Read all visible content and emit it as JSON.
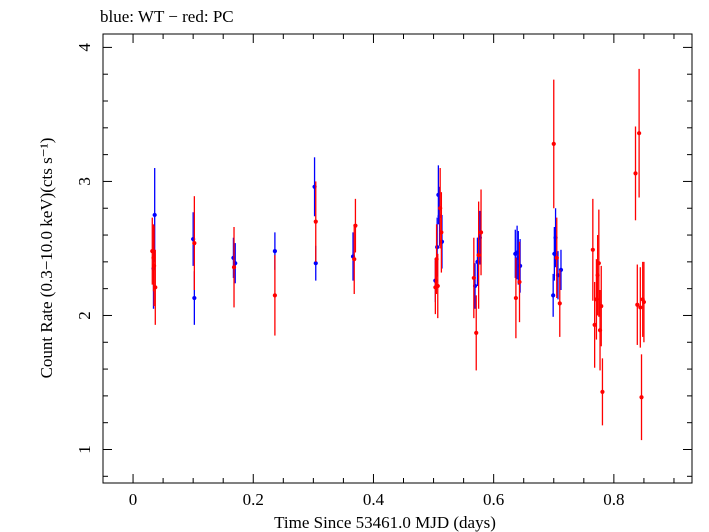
{
  "header": {
    "title": "blue: WT − red: PC"
  },
  "colors": {
    "wt": "#0000ff",
    "pc": "#ff0000",
    "axis": "#000000"
  },
  "chart_data": {
    "type": "scatter",
    "title": "blue: WT − red: PC",
    "xlabel": "Time Since 53461.0 MJD (days)",
    "ylabel": "Count Rate (0.3−10.0 keV)(cts s⁻¹)",
    "xlim": [
      -0.05,
      0.93
    ],
    "ylim": [
      0.75,
      4.1
    ],
    "xticks": [
      0,
      0.2,
      0.4,
      0.6,
      0.8
    ],
    "xtick_labels": [
      "0",
      "0.2",
      "0.4",
      "0.6",
      "0.8"
    ],
    "yticks": [
      1,
      2,
      3,
      4
    ],
    "ytick_labels": [
      "1",
      "2",
      "3",
      "4"
    ],
    "grid": false,
    "series": [
      {
        "name": "WT",
        "color": "#0000ff",
        "points": [
          {
            "x": 0.034,
            "y": 2.35,
            "err": 0.3
          },
          {
            "x": 0.036,
            "y": 2.75,
            "err": 0.35
          },
          {
            "x": 0.1,
            "y": 2.57,
            "err": 0.2
          },
          {
            "x": 0.102,
            "y": 2.13,
            "err": 0.2
          },
          {
            "x": 0.167,
            "y": 2.43,
            "err": 0.15
          },
          {
            "x": 0.17,
            "y": 2.39,
            "err": 0.15
          },
          {
            "x": 0.236,
            "y": 2.48,
            "err": 0.14
          },
          {
            "x": 0.302,
            "y": 2.96,
            "err": 0.22
          },
          {
            "x": 0.304,
            "y": 2.39,
            "err": 0.13
          },
          {
            "x": 0.366,
            "y": 2.44,
            "err": 0.18
          },
          {
            "x": 0.503,
            "y": 2.26,
            "err": 0.16
          },
          {
            "x": 0.506,
            "y": 2.51,
            "err": 0.22
          },
          {
            "x": 0.508,
            "y": 2.9,
            "err": 0.22
          },
          {
            "x": 0.51,
            "y": 2.74,
            "err": 0.22
          },
          {
            "x": 0.514,
            "y": 2.55,
            "err": 0.2
          },
          {
            "x": 0.569,
            "y": 2.22,
            "err": 0.17
          },
          {
            "x": 0.573,
            "y": 2.4,
            "err": 0.18
          },
          {
            "x": 0.577,
            "y": 2.58,
            "err": 0.2
          },
          {
            "x": 0.636,
            "y": 2.46,
            "err": 0.18
          },
          {
            "x": 0.639,
            "y": 2.47,
            "err": 0.2
          },
          {
            "x": 0.641,
            "y": 2.43,
            "err": 0.2
          },
          {
            "x": 0.644,
            "y": 2.37,
            "err": 0.2
          },
          {
            "x": 0.699,
            "y": 2.15,
            "err": 0.16
          },
          {
            "x": 0.701,
            "y": 2.46,
            "err": 0.2
          },
          {
            "x": 0.703,
            "y": 2.58,
            "err": 0.22
          },
          {
            "x": 0.707,
            "y": 2.3,
            "err": 0.18
          },
          {
            "x": 0.712,
            "y": 2.34,
            "err": 0.15
          }
        ]
      },
      {
        "name": "PC",
        "color": "#ff0000",
        "points": [
          {
            "x": 0.032,
            "y": 2.48,
            "err": 0.25
          },
          {
            "x": 0.034,
            "y": 2.43,
            "err": 0.25
          },
          {
            "x": 0.035,
            "y": 2.37,
            "err": 0.3
          },
          {
            "x": 0.037,
            "y": 2.21,
            "err": 0.28
          },
          {
            "x": 0.102,
            "y": 2.54,
            "err": 0.35
          },
          {
            "x": 0.168,
            "y": 2.36,
            "err": 0.3
          },
          {
            "x": 0.236,
            "y": 2.15,
            "err": 0.3
          },
          {
            "x": 0.304,
            "y": 2.7,
            "err": 0.3
          },
          {
            "x": 0.368,
            "y": 2.42,
            "err": 0.26
          },
          {
            "x": 0.37,
            "y": 2.67,
            "err": 0.2
          },
          {
            "x": 0.503,
            "y": 2.21,
            "err": 0.2
          },
          {
            "x": 0.505,
            "y": 2.42,
            "err": 0.26
          },
          {
            "x": 0.507,
            "y": 2.22,
            "err": 0.24
          },
          {
            "x": 0.511,
            "y": 2.8,
            "err": 0.3
          },
          {
            "x": 0.513,
            "y": 2.62,
            "err": 0.3
          },
          {
            "x": 0.567,
            "y": 2.28,
            "err": 0.3
          },
          {
            "x": 0.571,
            "y": 1.87,
            "err": 0.28
          },
          {
            "x": 0.575,
            "y": 2.45,
            "err": 0.4
          },
          {
            "x": 0.579,
            "y": 2.62,
            "err": 0.32
          },
          {
            "x": 0.637,
            "y": 2.13,
            "err": 0.3
          },
          {
            "x": 0.643,
            "y": 2.25,
            "err": 0.3
          },
          {
            "x": 0.7,
            "y": 3.28,
            "err": 0.48
          },
          {
            "x": 0.705,
            "y": 2.43,
            "err": 0.3
          },
          {
            "x": 0.71,
            "y": 2.09,
            "err": 0.25
          },
          {
            "x": 0.765,
            "y": 2.49,
            "err": 0.38
          },
          {
            "x": 0.768,
            "y": 1.93,
            "err": 0.32
          },
          {
            "x": 0.771,
            "y": 2.12,
            "err": 0.3
          },
          {
            "x": 0.773,
            "y": 2.3,
            "err": 0.3
          },
          {
            "x": 0.775,
            "y": 2.39,
            "err": 0.4
          },
          {
            "x": 0.777,
            "y": 1.89,
            "err": 0.3
          },
          {
            "x": 0.779,
            "y": 2.07,
            "err": 0.3
          },
          {
            "x": 0.781,
            "y": 1.43,
            "err": 0.25
          },
          {
            "x": 0.836,
            "y": 3.06,
            "err": 0.35
          },
          {
            "x": 0.839,
            "y": 2.08,
            "err": 0.3
          },
          {
            "x": 0.842,
            "y": 3.36,
            "err": 0.48
          },
          {
            "x": 0.844,
            "y": 2.06,
            "err": 0.3
          },
          {
            "x": 0.846,
            "y": 1.39,
            "err": 0.32
          },
          {
            "x": 0.848,
            "y": 2.12,
            "err": 0.28
          },
          {
            "x": 0.85,
            "y": 2.1,
            "err": 0.3
          }
        ]
      }
    ]
  }
}
